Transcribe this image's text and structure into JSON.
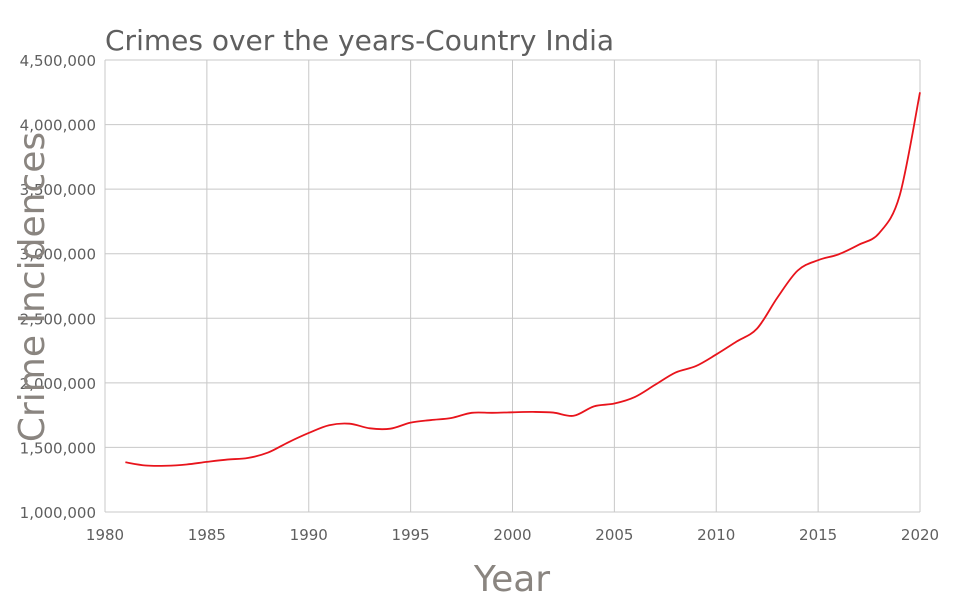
{
  "chart_data": {
    "type": "line",
    "title": "Crimes over the years-Country India",
    "xlabel": "Year",
    "ylabel": "Crime Incidences",
    "xlim": [
      1980,
      2020
    ],
    "ylim": [
      1000000,
      4500000
    ],
    "x_ticks": [
      1980,
      1985,
      1990,
      1995,
      2000,
      2005,
      2010,
      2015,
      2020
    ],
    "x_tick_labels": [
      "1980",
      "1985",
      "1990",
      "1995",
      "2000",
      "2005",
      "2010",
      "2015",
      "2020"
    ],
    "y_ticks": [
      1000000,
      1500000,
      2000000,
      2500000,
      3000000,
      3500000,
      4000000,
      4500000
    ],
    "y_tick_labels": [
      "1,000,000",
      "1,500,000",
      "2,000,000",
      "2,500,000",
      "3,000,000",
      "3,500,000",
      "4,000,000",
      "4,500,000"
    ],
    "grid": true,
    "series": [
      {
        "name": "India",
        "color": "#e8141c",
        "x": [
          1981,
          1982,
          1983,
          1984,
          1985,
          1986,
          1987,
          1988,
          1989,
          1990,
          1991,
          1992,
          1993,
          1994,
          1995,
          1996,
          1997,
          1998,
          1999,
          2000,
          2001,
          2002,
          2003,
          2004,
          2005,
          2006,
          2007,
          2008,
          2009,
          2010,
          2011,
          2012,
          2013,
          2014,
          2015,
          2016,
          2017,
          2018,
          2019,
          2020
        ],
        "values": [
          1385000,
          1360000,
          1358000,
          1368000,
          1388000,
          1406000,
          1418000,
          1460000,
          1540000,
          1612000,
          1672000,
          1684000,
          1648000,
          1645000,
          1692000,
          1712000,
          1728000,
          1768000,
          1768000,
          1772000,
          1775000,
          1770000,
          1745000,
          1818000,
          1840000,
          1890000,
          1985000,
          2080000,
          2130000,
          2220000,
          2320000,
          2420000,
          2660000,
          2870000,
          2950000,
          2995000,
          3070000,
          3160000,
          3450000,
          4250000
        ]
      }
    ]
  }
}
